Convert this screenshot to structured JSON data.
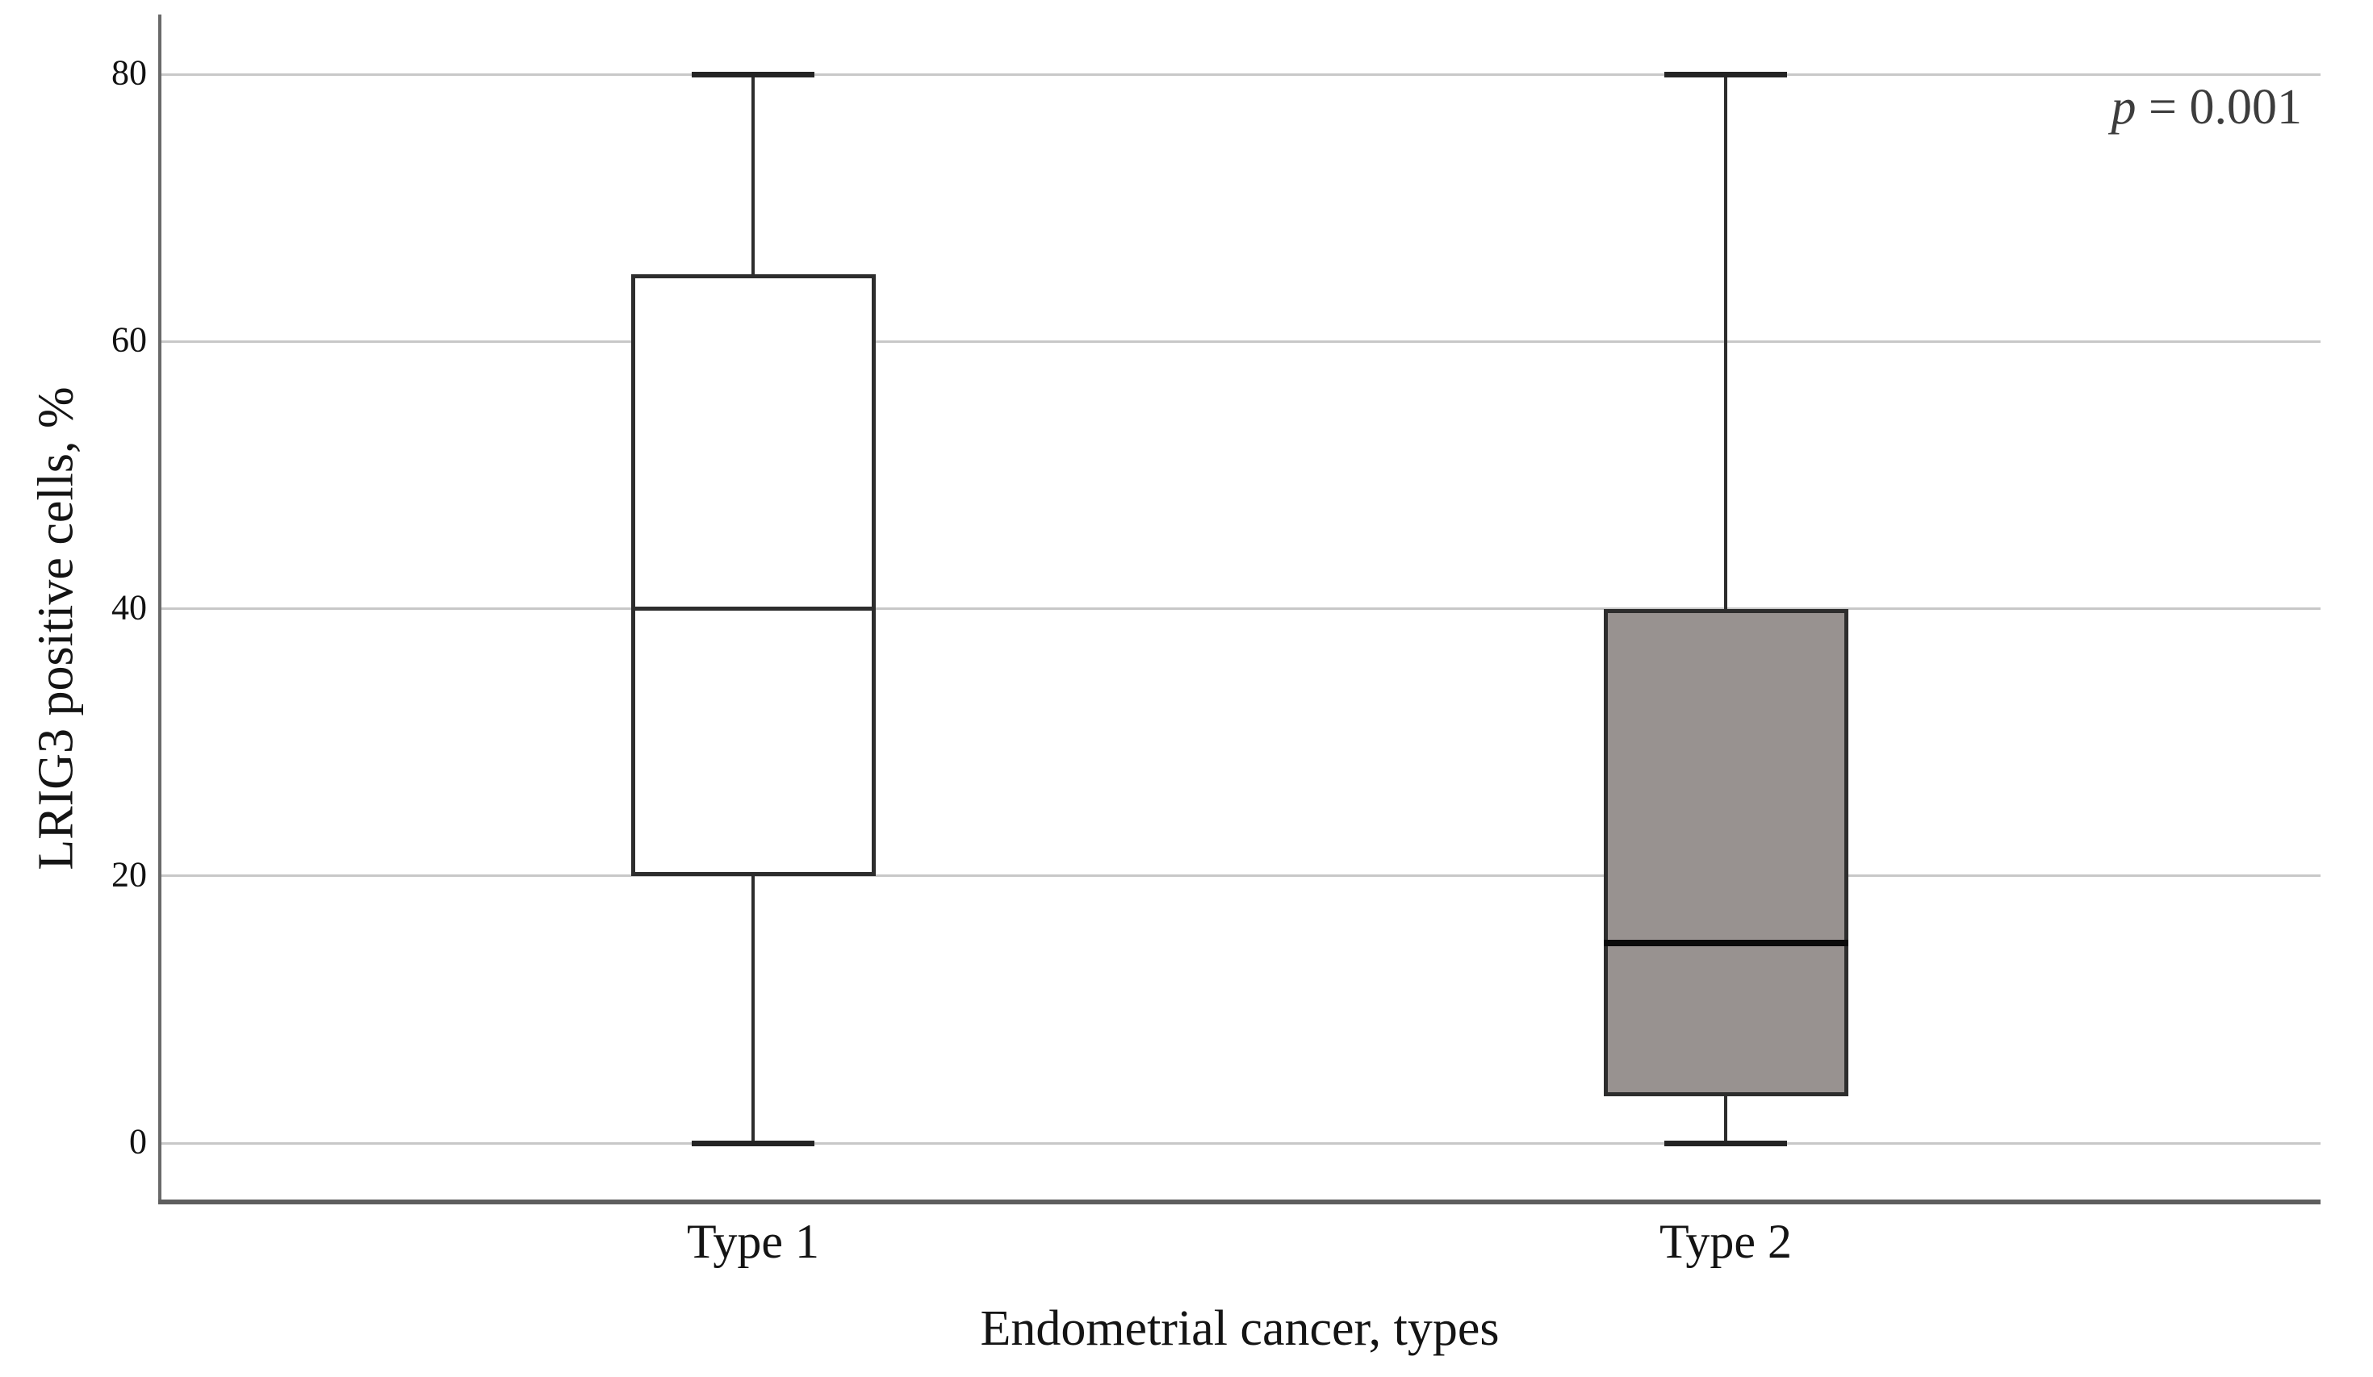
{
  "figure": {
    "background": "#ffffff"
  },
  "chart_data": {
    "type": "box",
    "title": "",
    "xlabel": "Endometrial cancer, types",
    "ylabel": "LRIG3 positive cells, %",
    "annotation": {
      "symbol": "p",
      "rest": " = 0.001",
      "full_text": "p = 0.001"
    },
    "categories": [
      "Type 1",
      "Type 2"
    ],
    "yticks": [
      0,
      20,
      40,
      60,
      80
    ],
    "ylim": [
      -4.4,
      84.5
    ],
    "grid": "horizontal",
    "legend": "none",
    "series": [
      {
        "name": "Type 1",
        "min": 0,
        "q1": 20,
        "median": 40,
        "q3": 65,
        "max": 80,
        "fill": "#ffffff"
      },
      {
        "name": "Type 2",
        "min": 0,
        "q1": 3.5,
        "median": 15,
        "q3": 40,
        "max": 80,
        "fill": "#989290"
      }
    ],
    "colors": {
      "gridline": "#c8c8c8",
      "axis_spine": "#6a6a6a",
      "box_border": "#2d2d2d",
      "whisker": "#2d2d2d",
      "median_type1": "#2d2d2d",
      "median_type2": "#0b0b0b",
      "tick_text": "#111111",
      "label_text": "#141414",
      "annotation_text": "#3d3d3d"
    }
  }
}
